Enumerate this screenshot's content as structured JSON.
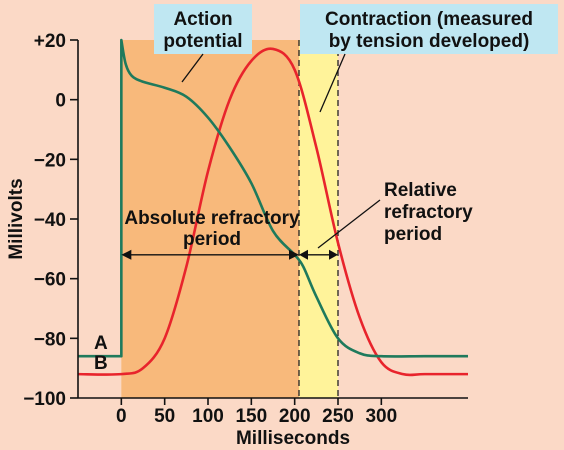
{
  "chart_data": {
    "type": "line",
    "xlabel": "Milliseconds",
    "ylabel": "Millivolts",
    "x_ticks": [
      0,
      50,
      100,
      150,
      200,
      250,
      300
    ],
    "y_ticks": [
      20,
      0,
      -20,
      -40,
      -60,
      -80,
      -100
    ],
    "y_tick_labels": [
      "+20",
      "0",
      "−20",
      "−40",
      "−60",
      "−80",
      "−100"
    ],
    "xlim": [
      -50,
      400
    ],
    "ylim": [
      -100,
      20
    ],
    "series": [
      {
        "name": "Action potential",
        "marker": "A",
        "color": "#1f7a5c",
        "x": [
          -50,
          0,
          0,
          5,
          12,
          25,
          50,
          75,
          100,
          125,
          150,
          175,
          200,
          210,
          225,
          250,
          275,
          300,
          350,
          400
        ],
        "y": [
          -86,
          -86,
          20,
          12,
          8,
          6,
          4,
          1,
          -6,
          -16,
          -28,
          -44,
          -52,
          -56,
          -66,
          -80,
          -85,
          -86,
          -86,
          -86
        ]
      },
      {
        "name": "Contraction (measured by tension developed)",
        "marker": "B",
        "color": "#e8242c",
        "x": [
          -50,
          0,
          25,
          50,
          75,
          100,
          125,
          150,
          175,
          200,
          225,
          250,
          275,
          300,
          325,
          350,
          400
        ],
        "y": [
          -92,
          -92,
          -90,
          -80,
          -56,
          -24,
          0,
          13,
          17,
          10,
          -16,
          -48,
          -73,
          -88,
          -92,
          -92,
          -92
        ]
      }
    ],
    "regions": [
      {
        "name": "Absolute refractory period",
        "x_range": [
          0,
          205
        ],
        "color": "#f8b97b"
      },
      {
        "name": "Relative refractory period",
        "x_range": [
          205,
          250
        ],
        "color": "#fff39a"
      }
    ],
    "annotations": {
      "absolute_label": [
        "Absolute refractory",
        "period"
      ],
      "relative_label": [
        "Relative",
        "refractory",
        "period"
      ],
      "action_callout": [
        "Action",
        "potential"
      ],
      "contraction_callout": [
        "Contraction (measured",
        "by tension developed)"
      ],
      "marker_a": "A",
      "marker_b": "B"
    }
  }
}
